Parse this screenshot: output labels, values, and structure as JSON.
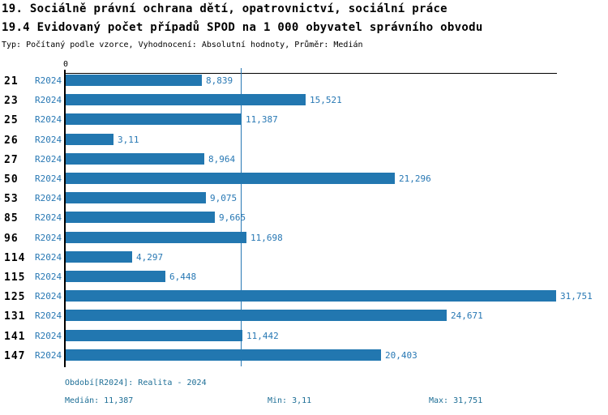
{
  "header": {
    "title_line1": "19. Sociálně právní ochrana dětí, opatrovnictví, sociální práce",
    "title_line2": "19.4 Evidovaný počet případů SPOD na 1 000 obyvatel správního obvodu",
    "subtitle": "Typ: Počítaný podle vzorce, Vyhodnocení: Absolutní hodnoty, Průměr: Medián"
  },
  "chart_data": {
    "type": "bar",
    "orientation": "horizontal",
    "title": "19.4 Evidovaný počet případů SPOD na 1 000 obyvatel správního obvodu",
    "categories": [
      "21",
      "23",
      "25",
      "26",
      "27",
      "50",
      "53",
      "85",
      "96",
      "114",
      "115",
      "125",
      "131",
      "141",
      "147"
    ],
    "series_label": "R2024",
    "values": [
      8.839,
      15.521,
      11.387,
      3.11,
      8.964,
      21.296,
      9.075,
      9.665,
      11.698,
      4.297,
      6.448,
      31.751,
      24.671,
      11.442,
      20.403
    ],
    "value_labels": [
      "8,839",
      "15,521",
      "11,387",
      "3,11",
      "8,964",
      "21,296",
      "9,075",
      "9,665",
      "11,698",
      "4,297",
      "6,448",
      "31,751",
      "24,671",
      "11,442",
      "20,403"
    ],
    "xlim": [
      0,
      31.751
    ],
    "x_axis_zero_label": "0",
    "median_value": 11.387,
    "grid": false,
    "legend_position": "none",
    "bar_color": "#2277b0",
    "median_line_color": "#2878b4",
    "label_color": "#2878b4",
    "category_color": "#000000"
  },
  "footer": {
    "period_label": "Období[R2024]: Realita - 2024",
    "median_label": "Medián: 11,387",
    "min_label": "Min: 3,11",
    "max_label": "Max: 31,751"
  }
}
